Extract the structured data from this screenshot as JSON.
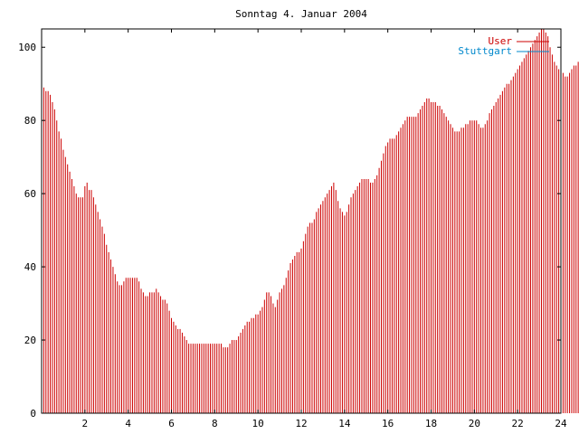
{
  "chart_data": {
    "type": "bar",
    "title": "Sonntag 4. Januar 2004",
    "xlabel": "",
    "ylabel": "",
    "xlim": [
      0,
      24
    ],
    "ylim": [
      0,
      105
    ],
    "x_ticks": [
      "2",
      "4",
      "6",
      "8",
      "10",
      "12",
      "14",
      "16",
      "18",
      "20",
      "22",
      "24"
    ],
    "y_ticks": [
      "0",
      "20",
      "40",
      "60",
      "80",
      "100"
    ],
    "grid": false,
    "legend_position": "top-right",
    "series": [
      {
        "name": "User",
        "color": "#cc0000",
        "x_start": 0,
        "x_step": 0.1,
        "values": [
          89,
          89,
          88,
          88,
          87,
          85,
          83,
          80,
          77,
          75,
          72,
          70,
          68,
          66,
          64,
          62,
          60,
          59,
          59,
          59,
          62,
          63,
          61,
          61,
          59,
          57,
          55,
          53,
          51,
          49,
          46,
          44,
          42,
          40,
          38,
          36,
          35,
          35,
          36,
          37,
          37,
          37,
          37,
          37,
          37,
          36,
          34,
          33,
          32,
          32,
          33,
          33,
          33,
          34,
          33,
          32,
          31,
          31,
          30,
          28,
          26,
          25,
          24,
          23,
          23,
          22,
          21,
          20,
          19,
          19,
          19,
          19,
          19,
          19,
          19,
          19,
          19,
          19,
          19,
          19,
          19,
          19,
          19,
          19,
          18,
          18,
          18,
          19,
          20,
          20,
          20,
          21,
          22,
          23,
          24,
          25,
          25,
          26,
          26,
          27,
          27,
          28,
          29,
          31,
          33,
          33,
          32,
          30,
          29,
          31,
          33,
          34,
          35,
          37,
          39,
          41,
          42,
          43,
          44,
          44,
          45,
          47,
          49,
          51,
          52,
          52,
          53,
          55,
          56,
          57,
          58,
          59,
          60,
          61,
          62,
          63,
          61,
          58,
          56,
          55,
          54,
          55,
          57,
          59,
          60,
          61,
          62,
          63,
          64,
          64,
          64,
          64,
          63,
          63,
          64,
          65,
          67,
          69,
          71,
          73,
          74,
          75,
          75,
          75,
          76,
          77,
          78,
          79,
          80,
          81,
          81,
          81,
          81,
          81,
          82,
          83,
          84,
          85,
          86,
          86,
          85,
          85,
          85,
          84,
          84,
          83,
          82,
          81,
          80,
          79,
          78,
          77,
          77,
          77,
          78,
          78,
          79,
          79,
          80,
          80,
          80,
          80,
          79,
          78,
          78,
          79,
          80,
          82,
          83,
          84,
          85,
          86,
          87,
          88,
          89,
          90,
          90,
          91,
          92,
          93,
          94,
          95,
          96,
          97,
          98,
          99,
          100,
          101,
          102,
          103,
          104,
          105,
          105,
          104,
          103,
          100,
          98,
          96,
          95,
          94,
          93,
          93,
          92,
          92,
          93,
          94,
          95,
          95,
          96,
          96,
          97,
          96,
          95,
          95,
          95,
          94,
          93,
          92,
          91,
          88
        ]
      },
      {
        "name": "Stuttgart",
        "color": "#0088cc",
        "x_start": 0,
        "x_step": 0.1,
        "values": []
      }
    ]
  }
}
